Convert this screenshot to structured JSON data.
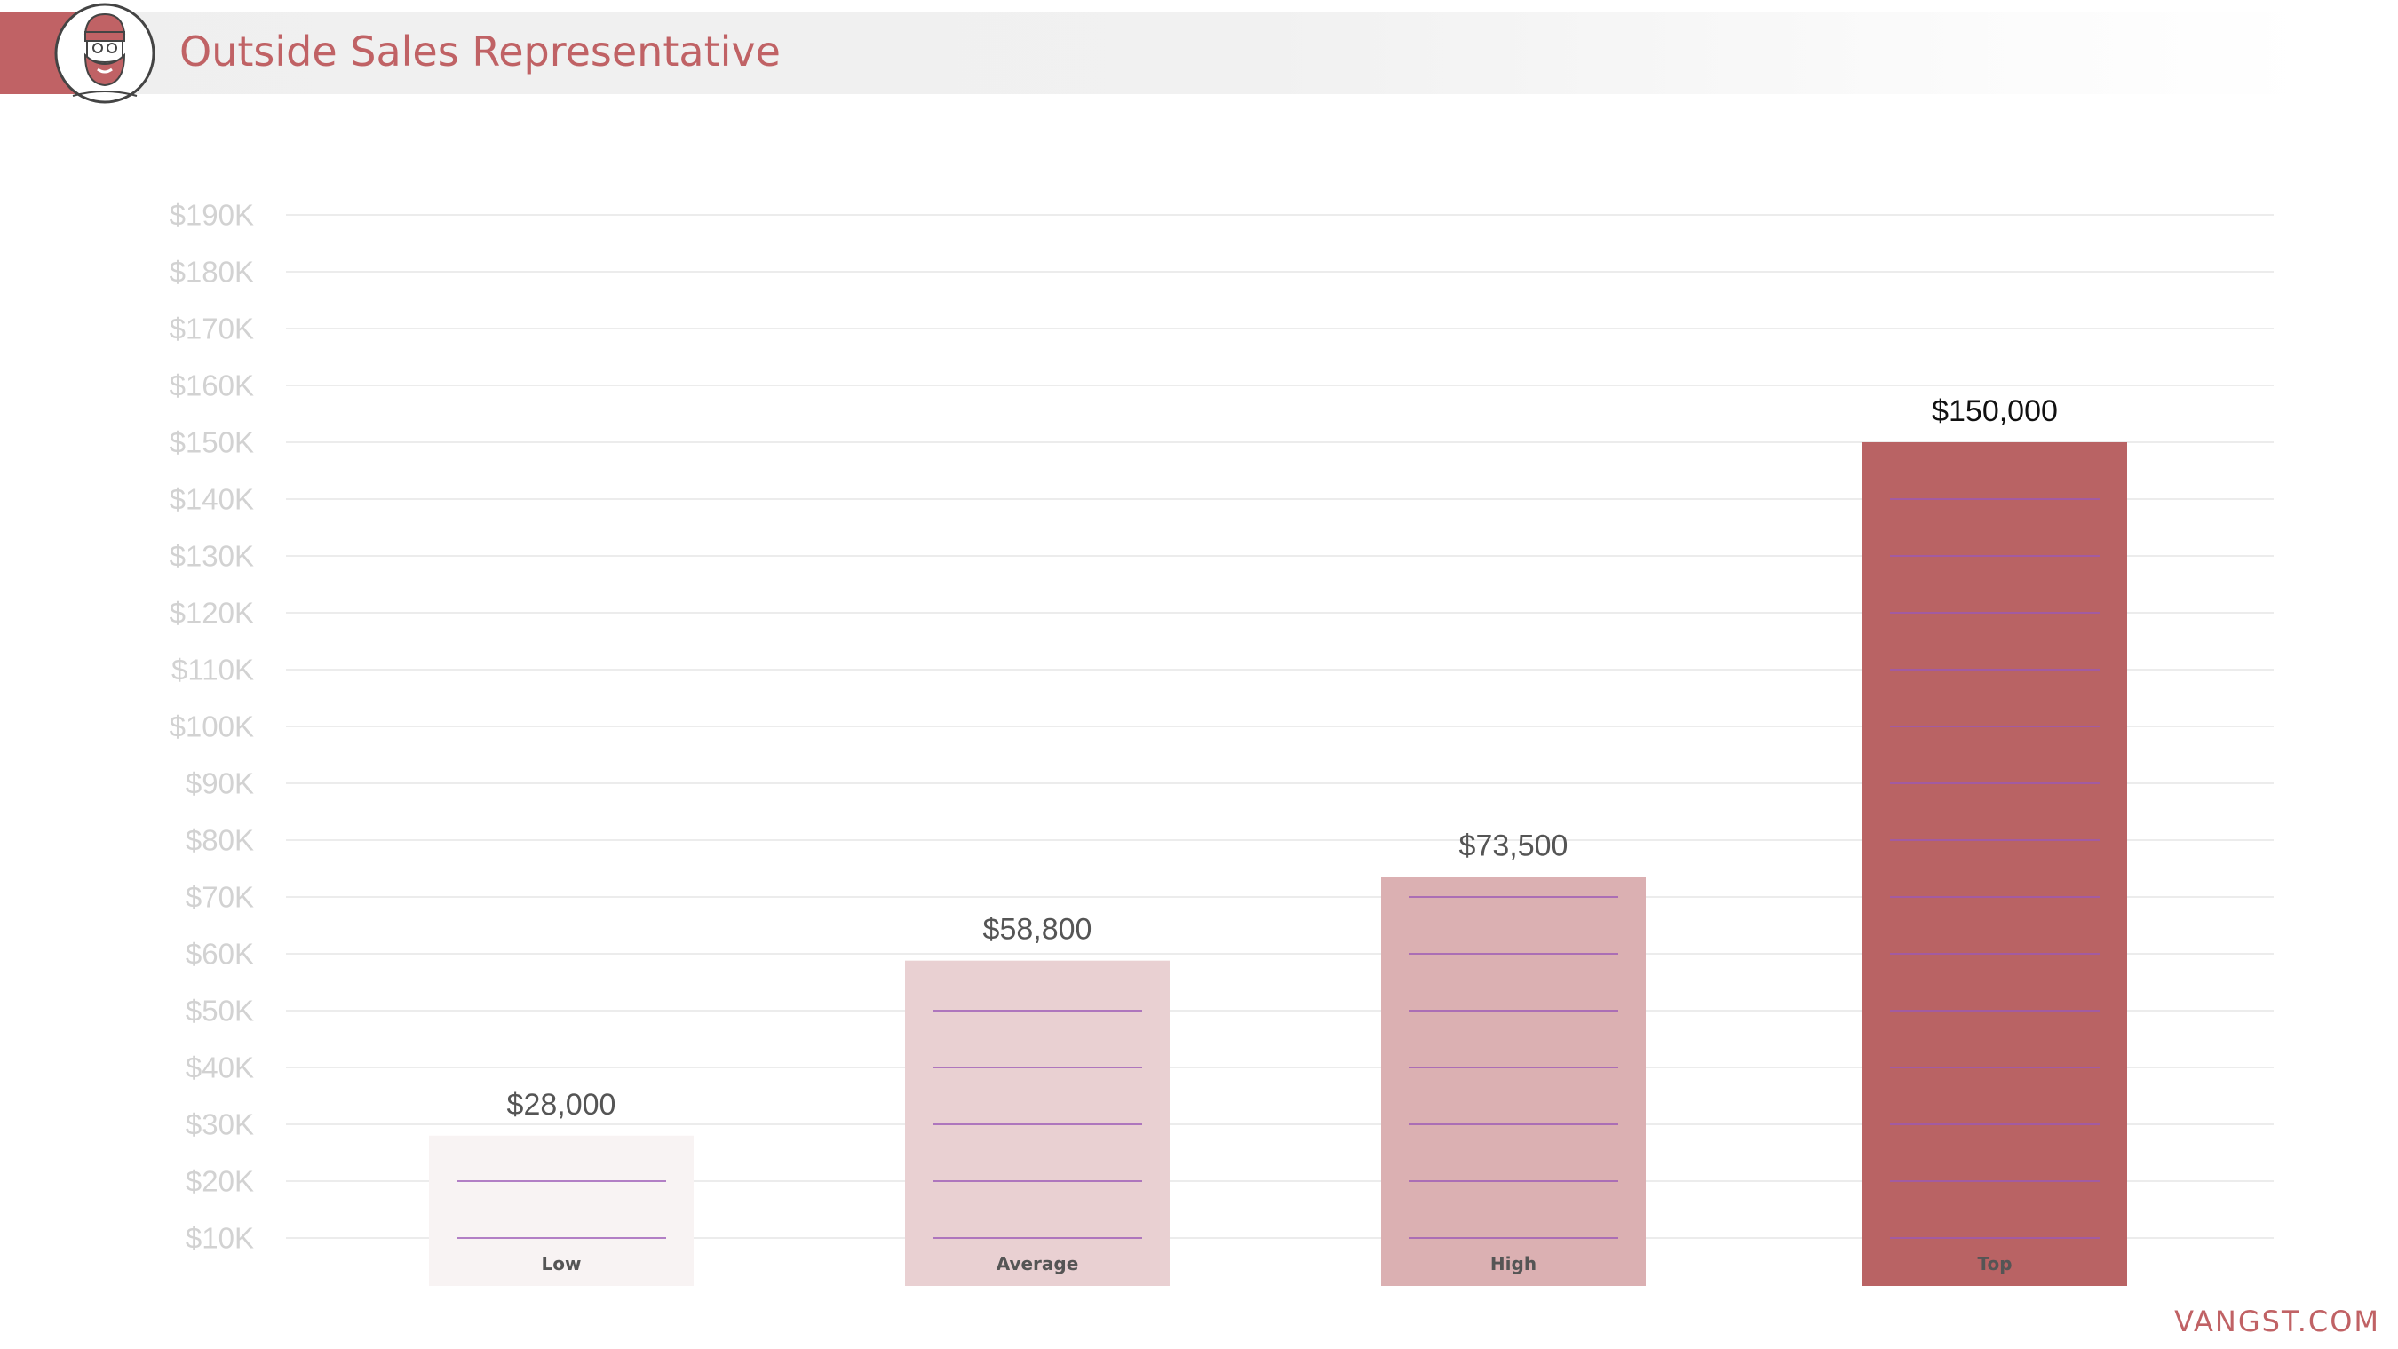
{
  "header": {
    "title": "Outside Sales Representative"
  },
  "footer": {
    "brand": "VANGST.COM"
  },
  "colors": {
    "accent": "#c06265",
    "bar_low": "#f8f3f3",
    "bar_average": "#e9d0d2",
    "bar_high": "#dbb0b2",
    "bar_top": "#b96364",
    "inner_lines": "#9b59b6",
    "gridline": "#ececec",
    "tick_text": "#d2d2d2"
  },
  "chart_data": {
    "type": "bar",
    "categories": [
      "Low",
      "Average",
      "High",
      "Top"
    ],
    "values": [
      28000,
      58800,
      73500,
      150000
    ],
    "value_labels": [
      "$28,000",
      "$58,800",
      "$73,500",
      "$150,000"
    ],
    "y_ticks": [
      10000,
      20000,
      30000,
      40000,
      50000,
      60000,
      70000,
      80000,
      90000,
      100000,
      110000,
      120000,
      130000,
      140000,
      150000,
      160000,
      170000,
      180000,
      190000
    ],
    "y_tick_labels": [
      "$10K",
      "$20K",
      "$30K",
      "$40K",
      "$50K",
      "$60K",
      "$70K",
      "$80K",
      "$90K",
      "$100K",
      "$110K",
      "$120K",
      "$130K",
      "$140K",
      "$150K",
      "$160K",
      "$170K",
      "$180K",
      "$190K"
    ],
    "ylim": [
      10000,
      190000
    ],
    "grid": true,
    "legend": "none",
    "title": "Outside Sales Representative",
    "xlabel": "",
    "ylabel": ""
  }
}
